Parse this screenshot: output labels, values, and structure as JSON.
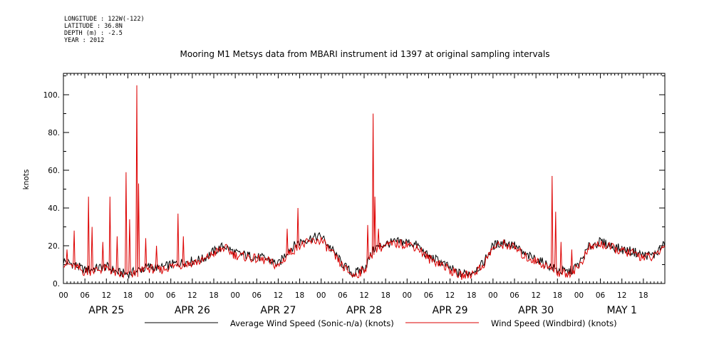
{
  "header": {
    "longitude": "LONGITUDE : 122W(-122)",
    "latitude": "LATITUDE : 36.8N",
    "depth": "DEPTH (m) : -2.5",
    "year": "YEAR : 2012"
  },
  "chart_data": {
    "type": "line",
    "title": "Mooring M1 Metsys data from MBARI instrument id 1397 at original sampling intervals",
    "ylabel": "knots",
    "xlabel": "",
    "ylim": [
      0,
      110
    ],
    "y_ticks": [
      0,
      20,
      40,
      60,
      80,
      100
    ],
    "y_tick_labels": [
      "0.",
      "20.",
      "40.",
      "60.",
      "80.",
      "100."
    ],
    "xlim_hours": [
      0,
      168
    ],
    "x_hour_labels": [
      "00",
      "06",
      "12",
      "18",
      "00",
      "06",
      "12",
      "18",
      "00",
      "06",
      "12",
      "18",
      "00",
      "06",
      "12",
      "18",
      "00",
      "06",
      "12",
      "18",
      "00",
      "06",
      "12",
      "18",
      "00",
      "06",
      "12",
      "18"
    ],
    "date_labels": [
      "APR 25",
      "APR 26",
      "APR 27",
      "APR 28",
      "APR 29",
      "APR 30",
      "MAY  1"
    ],
    "grid": false,
    "legend_position": "bottom",
    "series": [
      {
        "name": "Average Wind Speed (Sonic-n/a) (knots)",
        "color": "#000000",
        "hours": [
          0,
          3,
          6,
          9,
          12,
          15,
          18,
          21,
          24,
          27,
          30,
          33,
          36,
          39,
          42,
          45,
          48,
          51,
          54,
          57,
          60,
          63,
          66,
          69,
          72,
          75,
          78,
          81,
          84,
          87,
          90,
          93,
          96,
          99,
          102,
          105,
          108,
          111,
          114,
          117,
          120,
          123,
          126,
          129,
          132,
          135,
          138,
          141,
          144,
          147,
          150,
          153,
          156,
          159,
          162,
          165,
          168
        ],
        "values": [
          12,
          10,
          7,
          8,
          9,
          6,
          5,
          7,
          9,
          8,
          10,
          11,
          12,
          13,
          17,
          20,
          16,
          15,
          14,
          13,
          10,
          18,
          22,
          24,
          25,
          18,
          10,
          5,
          8,
          19,
          21,
          22,
          22,
          20,
          14,
          12,
          8,
          5,
          6,
          10,
          20,
          22,
          20,
          15,
          13,
          10,
          7,
          6,
          10,
          20,
          22,
          20,
          18,
          17,
          15,
          15,
          21
        ]
      },
      {
        "name": "Wind Speed (Windbird) (knots)",
        "color": "#dd0000",
        "hours": [
          0,
          3,
          6,
          9,
          12,
          15,
          18,
          21,
          24,
          27,
          30,
          33,
          36,
          39,
          42,
          45,
          48,
          51,
          54,
          57,
          60,
          63,
          66,
          69,
          72,
          75,
          78,
          81,
          84,
          87,
          90,
          93,
          96,
          99,
          102,
          105,
          108,
          111,
          114,
          117,
          120,
          123,
          126,
          129,
          132,
          135,
          138,
          141,
          144,
          147,
          150,
          153,
          156,
          159,
          162,
          165,
          168
        ],
        "values": [
          11,
          9,
          6,
          7,
          8,
          5,
          4,
          6,
          8,
          7,
          9,
          10,
          11,
          12,
          16,
          19,
          15,
          14,
          13,
          12,
          9,
          16,
          20,
          22,
          23,
          16,
          9,
          4,
          7,
          18,
          20,
          21,
          21,
          19,
          13,
          11,
          7,
          4,
          5,
          9,
          19,
          21,
          19,
          14,
          12,
          9,
          6,
          5,
          9,
          19,
          21,
          19,
          17,
          16,
          14,
          14,
          20
        ],
        "spikes": [
          {
            "hour": 1,
            "value": 18
          },
          {
            "hour": 3,
            "value": 28
          },
          {
            "hour": 7,
            "value": 46
          },
          {
            "hour": 8,
            "value": 30
          },
          {
            "hour": 11,
            "value": 22
          },
          {
            "hour": 13,
            "value": 46
          },
          {
            "hour": 15,
            "value": 25
          },
          {
            "hour": 17.5,
            "value": 59
          },
          {
            "hour": 18.5,
            "value": 34
          },
          {
            "hour": 20.5,
            "value": 105
          },
          {
            "hour": 21,
            "value": 53
          },
          {
            "hour": 23,
            "value": 24
          },
          {
            "hour": 26,
            "value": 20
          },
          {
            "hour": 32,
            "value": 37
          },
          {
            "hour": 33.5,
            "value": 25
          },
          {
            "hour": 62.5,
            "value": 29
          },
          {
            "hour": 65.5,
            "value": 40
          },
          {
            "hour": 85,
            "value": 31
          },
          {
            "hour": 86.5,
            "value": 90
          },
          {
            "hour": 87,
            "value": 46
          },
          {
            "hour": 88,
            "value": 29
          },
          {
            "hour": 136.5,
            "value": 57
          },
          {
            "hour": 137.5,
            "value": 38
          },
          {
            "hour": 139,
            "value": 22
          },
          {
            "hour": 142,
            "value": 18
          }
        ]
      }
    ]
  }
}
